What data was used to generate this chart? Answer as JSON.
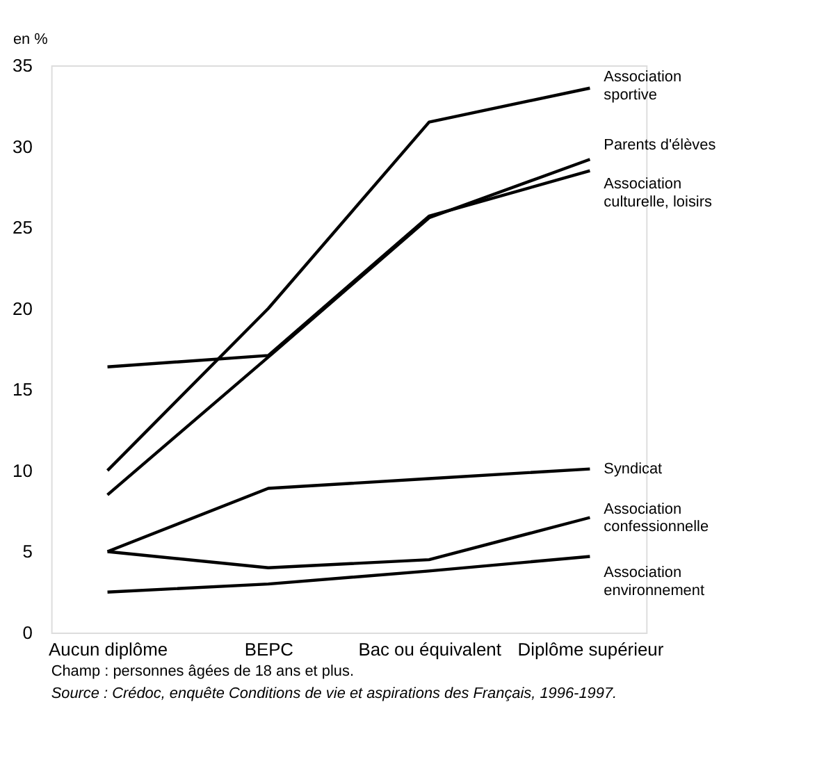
{
  "chart_data": {
    "type": "line",
    "ylabel": "en %",
    "categories": [
      "Aucun diplôme",
      "BEPC",
      "Bac ou équivalent",
      "Diplôme supérieur"
    ],
    "ylim": [
      0,
      35
    ],
    "yticks": [
      0,
      5,
      10,
      15,
      20,
      25,
      30,
      35
    ],
    "grid": false,
    "legend": false,
    "marker": "none",
    "line_style": "solid",
    "series": [
      {
        "name": "Association\nsportive",
        "color": "#000000",
        "values": [
          10,
          20,
          31.5,
          33.6
        ]
      },
      {
        "name": "Parents d'élèves",
        "color": "#000000",
        "values": [
          8.5,
          17,
          25.6,
          29.2
        ]
      },
      {
        "name": "Association\nculturelle, loisirs",
        "color": "#000000",
        "values": [
          16.4,
          17.1,
          25.7,
          28.5
        ]
      },
      {
        "name": "Syndicat",
        "color": "#000000",
        "values": [
          5,
          8.9,
          9.5,
          10.1
        ]
      },
      {
        "name": "Association\nconfessionnelle",
        "color": "#000000",
        "values": [
          5,
          4.0,
          4.5,
          7.1
        ]
      },
      {
        "name": "Association\nenvironnement",
        "color": "#000000",
        "values": [
          2.5,
          3.0,
          3.8,
          4.7
        ]
      }
    ],
    "annotations": [
      "Champ : personnes âgées de 18 ans et plus.",
      "Source : Crédoc, enquête Conditions de vie et aspirations des Français, 1996-1997."
    ]
  }
}
